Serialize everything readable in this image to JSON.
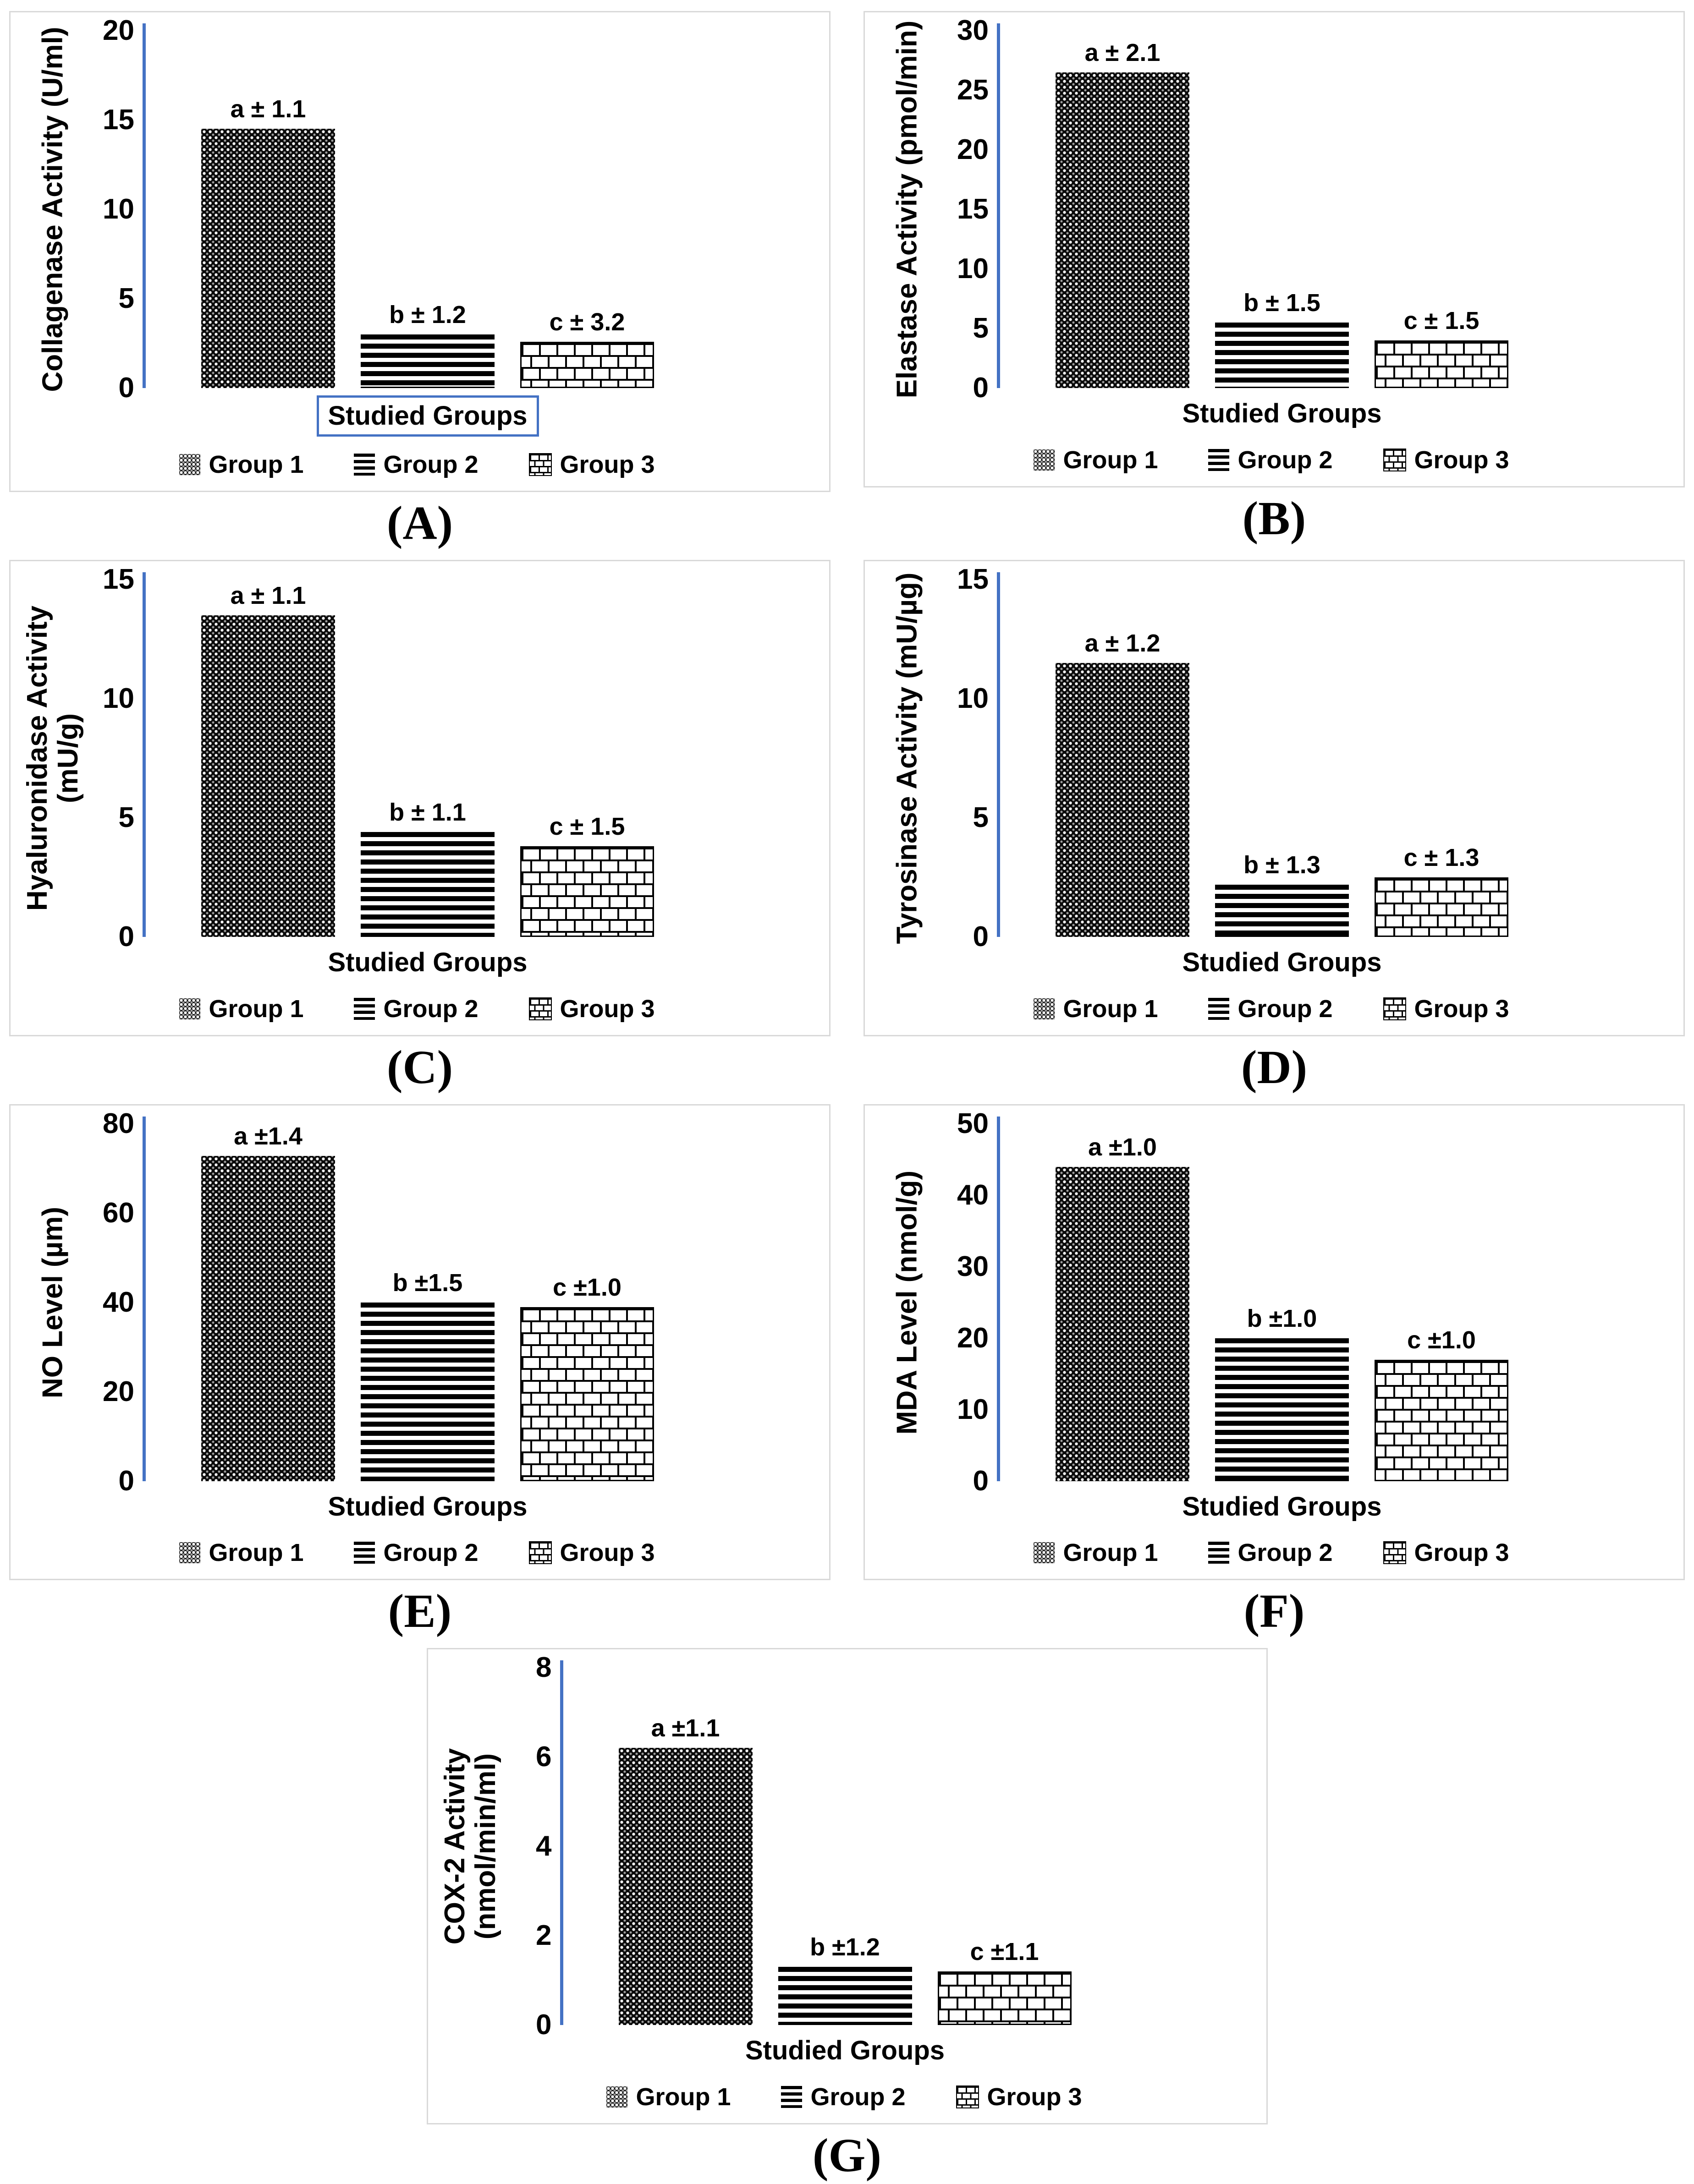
{
  "colors": {
    "axis_line": "#4472C4",
    "xlabel_box_border": "#4472C4",
    "panel_border": "#D9D9D9",
    "text": "#000000",
    "bar_dark_fill": "#000000",
    "bar_light_bg": "#FFFFFF"
  },
  "chart_data": [
    {
      "id": "A",
      "type": "bar",
      "caption": "(A)",
      "ylabel": "Collagenase Activity (U/ml)",
      "xlabel": "Studied Groups",
      "xlabel_boxed": true,
      "ylim": [
        0,
        20
      ],
      "yticks": [
        0,
        5,
        10,
        15,
        20
      ],
      "grid": false,
      "categories": [
        "Group 1",
        "Group 2",
        "Group 3"
      ],
      "values": [
        14.5,
        3.0,
        2.6
      ],
      "value_labels": [
        "a ± 1.1",
        "b ± 1.2",
        "c ± 3.2"
      ],
      "patterns": [
        "dotted-weave",
        "horizontal-stripes",
        "brick"
      ],
      "legend": [
        "Group 1",
        "Group 2",
        "Group 3"
      ],
      "legend_position": "bottom"
    },
    {
      "id": "B",
      "type": "bar",
      "caption": "(B)",
      "ylabel": "Elastase Activity (pmol/min)",
      "xlabel": "Studied Groups",
      "xlabel_boxed": false,
      "ylim": [
        0,
        30
      ],
      "yticks": [
        0,
        5,
        10,
        15,
        20,
        25,
        30
      ],
      "grid": false,
      "categories": [
        "Group 1",
        "Group 2",
        "Group 3"
      ],
      "values": [
        26.5,
        5.5,
        4.0
      ],
      "value_labels": [
        "a ± 2.1",
        "b ± 1.5",
        "c ± 1.5"
      ],
      "patterns": [
        "dotted-weave",
        "horizontal-stripes",
        "brick"
      ],
      "legend": [
        "Group 1",
        "Group 2",
        "Group 3"
      ],
      "legend_position": "bottom"
    },
    {
      "id": "C",
      "type": "bar",
      "caption": "(C)",
      "ylabel": "Hyaluronidase Activity\n(mU/g)",
      "xlabel": "Studied Groups",
      "xlabel_boxed": false,
      "ylim": [
        0,
        15
      ],
      "yticks": [
        0,
        5,
        10,
        15
      ],
      "grid": false,
      "categories": [
        "Group 1",
        "Group 2",
        "Group 3"
      ],
      "values": [
        13.5,
        4.4,
        3.8
      ],
      "value_labels": [
        "a ± 1.1",
        "b ± 1.1",
        "c ± 1.5"
      ],
      "patterns": [
        "dotted-weave",
        "horizontal-stripes",
        "brick"
      ],
      "legend": [
        "Group 1",
        "Group 2",
        "Group 3"
      ],
      "legend_position": "bottom"
    },
    {
      "id": "D",
      "type": "bar",
      "caption": "(D)",
      "ylabel": "Tyrosinase Activity (mU/µg)",
      "xlabel": "Studied Groups",
      "xlabel_boxed": false,
      "ylim": [
        0,
        15
      ],
      "yticks": [
        0,
        5,
        10,
        15
      ],
      "grid": false,
      "categories": [
        "Group 1",
        "Group 2",
        "Group 3"
      ],
      "values": [
        11.5,
        2.2,
        2.5
      ],
      "value_labels": [
        "a ± 1.2",
        "b ± 1.3",
        "c ± 1.3"
      ],
      "patterns": [
        "dotted-weave",
        "horizontal-stripes",
        "brick"
      ],
      "legend": [
        "Group 1",
        "Group 2",
        "Group 3"
      ],
      "legend_position": "bottom"
    },
    {
      "id": "E",
      "type": "bar",
      "caption": "(E)",
      "ylabel": "NO Level (µm)",
      "xlabel": "Studied Groups",
      "xlabel_boxed": false,
      "ylim": [
        0,
        80
      ],
      "yticks": [
        0,
        20,
        40,
        60,
        80
      ],
      "grid": false,
      "categories": [
        "Group 1",
        "Group 2",
        "Group 3"
      ],
      "values": [
        76,
        40,
        39
      ],
      "value_labels": [
        "a ±1.4",
        "b ±1.5",
        "c ±1.0"
      ],
      "patterns": [
        "dotted-weave",
        "horizontal-stripes",
        "brick"
      ],
      "legend": [
        "Group 1",
        "Group 2",
        "Group 3"
      ],
      "legend_position": "bottom"
    },
    {
      "id": "F",
      "type": "bar",
      "caption": "(F)",
      "ylabel": "MDA Level (nmol/g)",
      "xlabel": "Studied Groups",
      "xlabel_boxed": false,
      "ylim": [
        0,
        50
      ],
      "yticks": [
        0,
        10,
        20,
        30,
        40,
        50
      ],
      "grid": false,
      "categories": [
        "Group 1",
        "Group 2",
        "Group 3"
      ],
      "values": [
        44,
        20,
        17
      ],
      "value_labels": [
        "a ±1.0",
        "b ±1.0",
        "c ±1.0"
      ],
      "patterns": [
        "dotted-weave",
        "horizontal-stripes",
        "brick"
      ],
      "legend": [
        "Group 1",
        "Group 2",
        "Group 3"
      ],
      "legend_position": "bottom"
    },
    {
      "id": "G",
      "type": "bar",
      "caption": "(G)",
      "ylabel": "COX-2 Activity\n(nmol/min/ml)",
      "xlabel": "Studied Groups",
      "xlabel_boxed": false,
      "ylim": [
        0,
        8
      ],
      "yticks": [
        0,
        2,
        4,
        6,
        8
      ],
      "grid": false,
      "categories": [
        "Group 1",
        "Group 2",
        "Group 3"
      ],
      "values": [
        6.2,
        1.3,
        1.2
      ],
      "value_labels": [
        "a ±1.1",
        "b ±1.2",
        "c ±1.1"
      ],
      "patterns": [
        "dotted-weave",
        "horizontal-stripes",
        "brick"
      ],
      "legend": [
        "Group 1",
        "Group 2",
        "Group 3"
      ],
      "legend_position": "bottom"
    }
  ]
}
